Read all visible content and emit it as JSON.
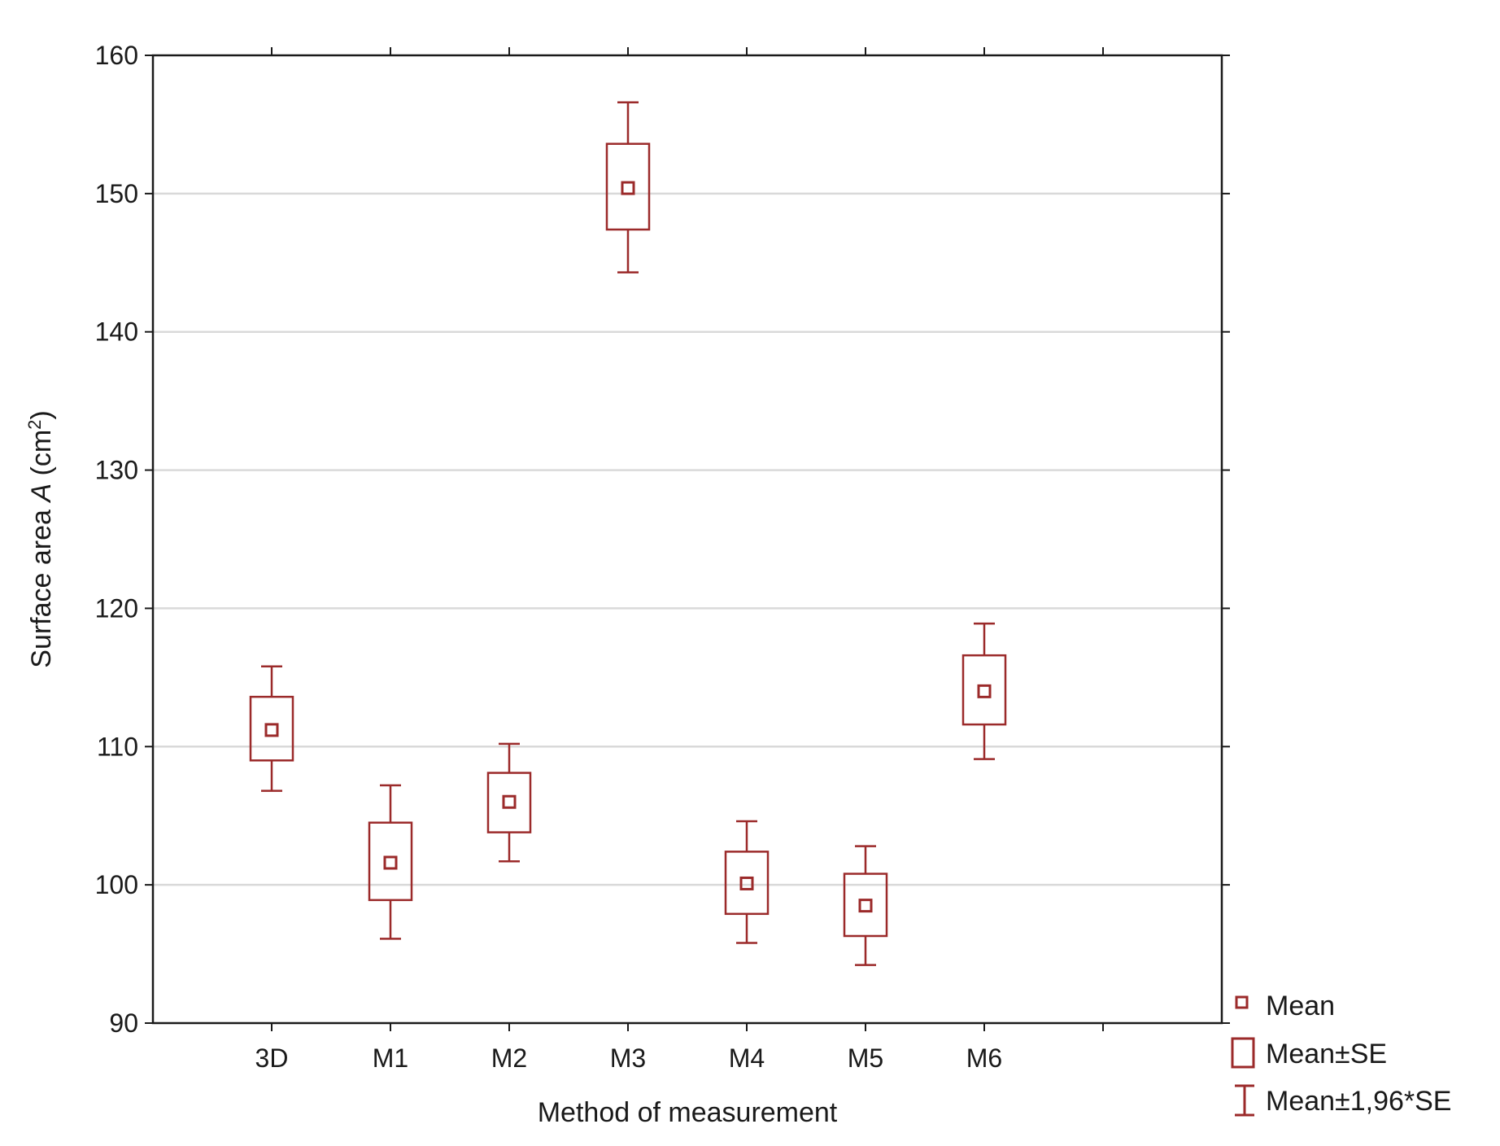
{
  "chart_data": {
    "type": "box",
    "xlabel": "Method of measurement",
    "ylabel": {
      "prefix": "Surface area ",
      "italic": "A",
      "unit_open": " (cm",
      "unit_sup": "2",
      "unit_close": ")"
    },
    "categories": [
      "3D",
      "M1",
      "M2",
      "M3",
      "M4",
      "M5",
      "M6"
    ],
    "mean": [
      111.2,
      101.6,
      106.0,
      150.4,
      100.1,
      98.5,
      114.0
    ],
    "se_low": [
      109.0,
      98.9,
      103.8,
      147.4,
      97.9,
      96.3,
      111.6
    ],
    "se_high": [
      113.6,
      104.5,
      108.1,
      153.6,
      102.4,
      100.8,
      116.6
    ],
    "ci_low": [
      106.8,
      96.1,
      101.7,
      144.3,
      95.8,
      94.2,
      109.1
    ],
    "ci_high": [
      115.8,
      107.2,
      110.2,
      156.6,
      104.6,
      102.8,
      118.9
    ],
    "ylim": [
      90,
      160
    ],
    "yticks": [
      90,
      100,
      110,
      120,
      130,
      140,
      150,
      160
    ],
    "grid": true,
    "legend": [
      "Mean",
      "Mean±SE",
      "Mean±1,96*SE"
    ],
    "legend_position": "bottom-right, outside plot",
    "colors": {
      "series": "#9b2a2a",
      "grid": "#d9d9d9",
      "axis": "#1a1a1a"
    }
  }
}
